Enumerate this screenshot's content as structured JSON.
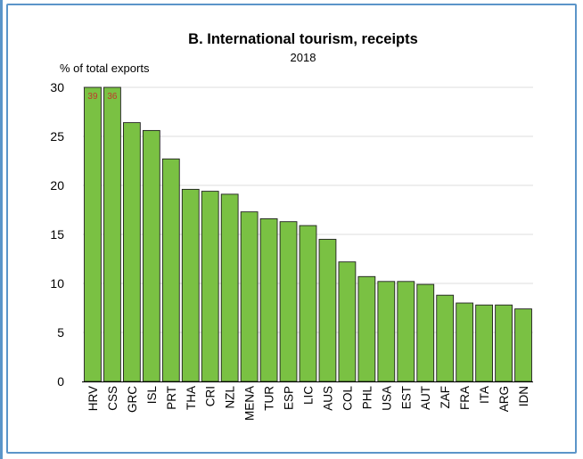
{
  "chart_data": {
    "type": "bar",
    "title": "B. International tourism, receipts",
    "subtitle": "2018",
    "ylabel": "% of total exports",
    "xlabel": "",
    "ylim": [
      0,
      30
    ],
    "yticks": [
      0,
      5,
      10,
      15,
      20,
      25,
      30
    ],
    "grid": true,
    "legend": "none",
    "bar_color": "#7ac143",
    "bar_edge_color": "#1f1f1f",
    "data_label_color": "#c0392b",
    "categories": [
      "HRV",
      "CSS",
      "GRC",
      "ISL",
      "PRT",
      "THA",
      "CRI",
      "NZL",
      "MENA",
      "TUR",
      "ESP",
      "LIC",
      "AUS",
      "COL",
      "PHL",
      "USA",
      "EST",
      "AUT",
      "ZAF",
      "FRA",
      "ITA",
      "ARG",
      "IDN"
    ],
    "values": [
      39,
      36,
      26.4,
      25.6,
      22.7,
      19.6,
      19.4,
      19.1,
      17.3,
      16.6,
      16.3,
      15.9,
      14.5,
      12.2,
      10.7,
      10.2,
      10.2,
      9.9,
      8.8,
      8.0,
      7.8,
      7.8,
      7.4
    ],
    "data_labels": [
      "39",
      "36",
      "",
      "",
      "",
      "",
      "",
      "",
      "",
      "",
      "",
      "",
      "",
      "",
      "",
      "",
      "",
      "",
      "",
      "",
      "",
      "",
      ""
    ]
  }
}
